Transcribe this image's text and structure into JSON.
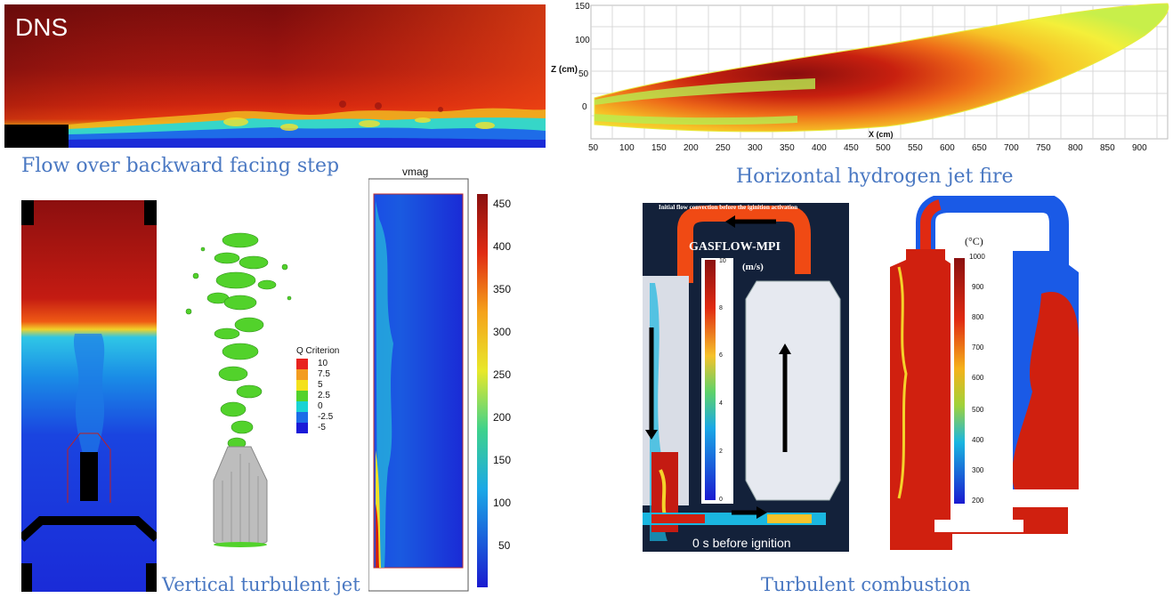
{
  "panels": {
    "step": {
      "label": "DNS",
      "caption": "Flow over backward facing step"
    },
    "h2jet": {
      "caption": "Horizontal hydrogen jet fire",
      "z_label": "Z (cm)",
      "x_label": "X (cm)",
      "z_ticks": [
        "150",
        "100",
        "50",
        "0"
      ],
      "x_ticks": [
        "50",
        "100",
        "150",
        "200",
        "250",
        "300",
        "350",
        "400",
        "450",
        "500",
        "550",
        "600",
        "650",
        "700",
        "750",
        "800",
        "850",
        "900"
      ]
    },
    "vertical_jet": {
      "caption": "Vertical turbulent jet",
      "q_legend_title": "Q Criterion",
      "q_legend": [
        {
          "label": "10",
          "color": "#e8231e"
        },
        {
          "label": "7.5",
          "color": "#f39c1f"
        },
        {
          "label": "5",
          "color": "#f4e11b"
        },
        {
          "label": "2.5",
          "color": "#52d22b"
        },
        {
          "label": "0",
          "color": "#19d3d4"
        },
        {
          "label": "-2.5",
          "color": "#1c6ce8"
        },
        {
          "label": "-5",
          "color": "#1a1ad8"
        }
      ],
      "vmag_title": "vmag",
      "vmag_ticks": [
        "450",
        "400",
        "350",
        "300",
        "250",
        "200",
        "150",
        "100",
        "50"
      ]
    },
    "combustion": {
      "caption": "Turbulent combustion",
      "left_title": "Initial flow convection before the iginition activation",
      "code_name": "GASFLOW-MPI",
      "velocity_unit": "(m/s)",
      "velocity_ticks": [
        "10",
        "8",
        "6",
        "4",
        "2",
        "0"
      ],
      "time_label": "0 s before ignition",
      "temp_unit": "(°C)",
      "temp_ticks": [
        "1000",
        "900",
        "800",
        "700",
        "600",
        "500",
        "400",
        "300",
        "200"
      ]
    }
  },
  "colors": {
    "caption": "#4a78c2",
    "hot": "#c81e12",
    "dark_red": "#8a1010",
    "cold": "#1a2bd8"
  }
}
